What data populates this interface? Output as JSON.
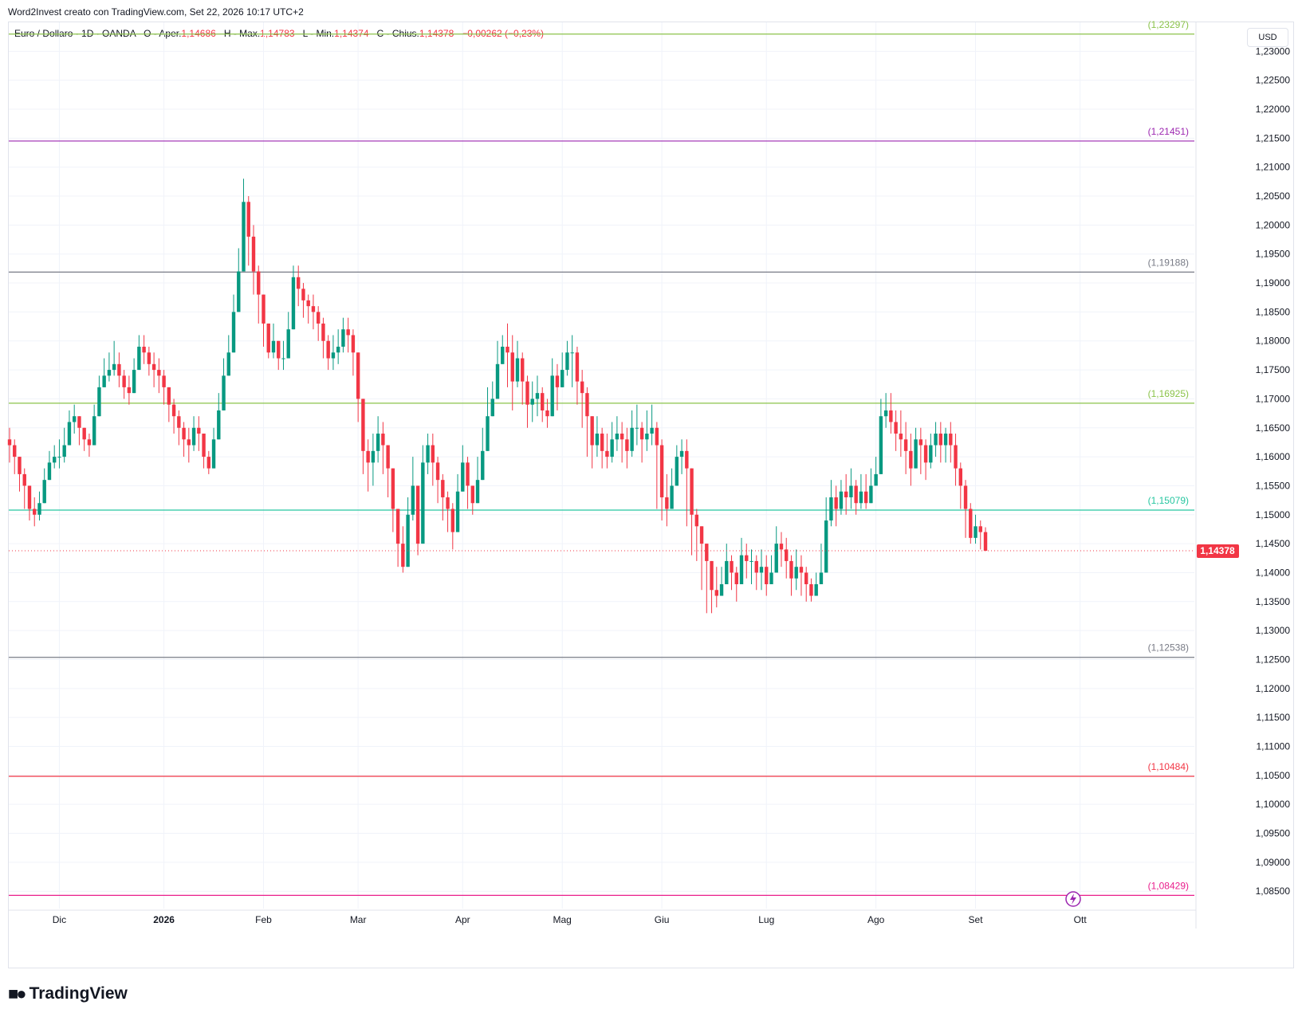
{
  "header": {
    "caption": "Word2Invest creato con TradingView.com, Set 22, 2026 10:17 UTC+2"
  },
  "legend": {
    "symbol": "Euro / Dollaro · 1D · OANDA",
    "o_label": "O - Aper.",
    "o_value": "1,14686",
    "h_label": "H - Max.",
    "h_value": "1,14783",
    "l_label": "L - Min.",
    "l_value": "1,14374",
    "c_label": "C - Chius.",
    "c_value": "1,14378",
    "change": "−0,00262 (−0,23%)"
  },
  "currency": "USD",
  "logo": {
    "text": "TradingView"
  },
  "colors": {
    "up": "#089981",
    "down": "#f23645",
    "grid": "#f0f3fa",
    "axis_text": "#131722"
  },
  "chart_data": {
    "type": "candlestick",
    "ylim": [
      1.082,
      1.235
    ],
    "y_ticks": [
      {
        "v": 1.23,
        "label": "1,23000"
      },
      {
        "v": 1.225,
        "label": "1,22500"
      },
      {
        "v": 1.22,
        "label": "1,22000"
      },
      {
        "v": 1.215,
        "label": "1,21500"
      },
      {
        "v": 1.21,
        "label": "1,21000"
      },
      {
        "v": 1.205,
        "label": "1,20500"
      },
      {
        "v": 1.2,
        "label": "1,20000"
      },
      {
        "v": 1.195,
        "label": "1,19500"
      },
      {
        "v": 1.19,
        "label": "1,19000"
      },
      {
        "v": 1.185,
        "label": "1,18500"
      },
      {
        "v": 1.18,
        "label": "1,18000"
      },
      {
        "v": 1.175,
        "label": "1,17500"
      },
      {
        "v": 1.17,
        "label": "1,17000"
      },
      {
        "v": 1.165,
        "label": "1,16500"
      },
      {
        "v": 1.16,
        "label": "1,16000"
      },
      {
        "v": 1.155,
        "label": "1,15500"
      },
      {
        "v": 1.15,
        "label": "1,15000"
      },
      {
        "v": 1.145,
        "label": "1,14500"
      },
      {
        "v": 1.14,
        "label": "1,14000"
      },
      {
        "v": 1.135,
        "label": "1,13500"
      },
      {
        "v": 1.13,
        "label": "1,13000"
      },
      {
        "v": 1.125,
        "label": "1,12500"
      },
      {
        "v": 1.12,
        "label": "1,12000"
      },
      {
        "v": 1.115,
        "label": "1,11500"
      },
      {
        "v": 1.11,
        "label": "1,11000"
      },
      {
        "v": 1.105,
        "label": "1,10500"
      },
      {
        "v": 1.1,
        "label": "1,10000"
      },
      {
        "v": 1.095,
        "label": "1,09500"
      },
      {
        "v": 1.09,
        "label": "1,09000"
      },
      {
        "v": 1.085,
        "label": "1,08500"
      }
    ],
    "x_ticks": [
      {
        "i": 10,
        "label": "Dic"
      },
      {
        "i": 31,
        "label": "2026"
      },
      {
        "i": 51,
        "label": "Feb"
      },
      {
        "i": 70,
        "label": "Mar"
      },
      {
        "i": 91,
        "label": "Apr"
      },
      {
        "i": 111,
        "label": "Mag"
      },
      {
        "i": 131,
        "label": "Giu"
      },
      {
        "i": 152,
        "label": "Lug"
      },
      {
        "i": 174,
        "label": "Ago"
      },
      {
        "i": 194,
        "label": "Set"
      },
      {
        "i": 215,
        "label": "Ott"
      }
    ],
    "last_price": {
      "v": 1.14378,
      "label": "1,14378"
    },
    "levels": [
      {
        "v": 1.23297,
        "label": "(1,23297)",
        "color": "#8bc34a"
      },
      {
        "v": 1.21451,
        "label": "(1,21451)",
        "color": "#9c27b0"
      },
      {
        "v": 1.19188,
        "label": "(1,19188)",
        "color": "#787b86"
      },
      {
        "v": 1.16925,
        "label": "(1,16925)",
        "color": "#8bc34a"
      },
      {
        "v": 1.15079,
        "label": "(1,15079)",
        "color": "#26c6a0"
      },
      {
        "v": 1.12538,
        "label": "(1,12538)",
        "color": "#787b86"
      },
      {
        "v": 1.10484,
        "label": "(1,10484)",
        "color": "#f23645"
      },
      {
        "v": 1.08429,
        "label": "(1,08429)",
        "color": "#e91e8c"
      }
    ],
    "closes": [
      1.162,
      1.16,
      1.157,
      1.155,
      1.151,
      1.15,
      1.152,
      1.156,
      1.159,
      1.16,
      1.16,
      1.162,
      1.166,
      1.167,
      1.165,
      1.163,
      1.162,
      1.167,
      1.172,
      1.174,
      1.175,
      1.176,
      1.174,
      1.172,
      1.171,
      1.175,
      1.179,
      1.178,
      1.176,
      1.175,
      1.174,
      1.172,
      1.169,
      1.167,
      1.165,
      1.163,
      1.162,
      1.165,
      1.164,
      1.16,
      1.158,
      1.163,
      1.168,
      1.174,
      1.178,
      1.185,
      1.192,
      1.204,
      1.198,
      1.192,
      1.188,
      1.183,
      1.178,
      1.18,
      1.177,
      1.177,
      1.182,
      1.191,
      1.189,
      1.187,
      1.186,
      1.185,
      1.183,
      1.18,
      1.177,
      1.178,
      1.179,
      1.182,
      1.181,
      1.178,
      1.17,
      1.161,
      1.159,
      1.161,
      1.164,
      1.162,
      1.158,
      1.151,
      1.145,
      1.141,
      1.15,
      1.155,
      1.145,
      1.159,
      1.162,
      1.159,
      1.156,
      1.153,
      1.151,
      1.147,
      1.154,
      1.159,
      1.155,
      1.152,
      1.156,
      1.161,
      1.167,
      1.17,
      1.176,
      1.179,
      1.178,
      1.173,
      1.177,
      1.173,
      1.169,
      1.17,
      1.171,
      1.168,
      1.167,
      1.174,
      1.172,
      1.175,
      1.178,
      1.178,
      1.173,
      1.171,
      1.167,
      1.162,
      1.164,
      1.161,
      1.16,
      1.163,
      1.164,
      1.163,
      1.161,
      1.165,
      1.165,
      1.163,
      1.164,
      1.165,
      1.162,
      1.153,
      1.151,
      1.155,
      1.16,
      1.161,
      1.158,
      1.15,
      1.148,
      1.145,
      1.142,
      1.137,
      1.136,
      1.138,
      1.142,
      1.14,
      1.138,
      1.143,
      1.142,
      1.142,
      1.14,
      1.141,
      1.138,
      1.14,
      1.145,
      1.144,
      1.142,
      1.139,
      1.141,
      1.14,
      1.138,
      1.136,
      1.138,
      1.14,
      1.149,
      1.153,
      1.151,
      1.154,
      1.153,
      1.155,
      1.152,
      1.154,
      1.152,
      1.155,
      1.157,
      1.167,
      1.168,
      1.166,
      1.164,
      1.163,
      1.161,
      1.158,
      1.163,
      1.162,
      1.159,
      1.162,
      1.164,
      1.162,
      1.164,
      1.162,
      1.158,
      1.155,
      1.151,
      1.146,
      1.148,
      1.147,
      1.14378
    ],
    "highs": [
      1.165,
      1.163,
      1.16,
      1.158,
      1.155,
      1.153,
      1.154,
      1.158,
      1.161,
      1.162,
      1.163,
      1.165,
      1.168,
      1.169,
      1.167,
      1.165,
      1.164,
      1.169,
      1.174,
      1.177,
      1.178,
      1.18,
      1.178,
      1.175,
      1.174,
      1.177,
      1.181,
      1.181,
      1.179,
      1.178,
      1.177,
      1.175,
      1.172,
      1.17,
      1.168,
      1.166,
      1.165,
      1.167,
      1.167,
      1.163,
      1.161,
      1.165,
      1.171,
      1.177,
      1.181,
      1.188,
      1.196,
      1.208,
      1.205,
      1.2,
      1.193,
      1.187,
      1.183,
      1.183,
      1.18,
      1.18,
      1.185,
      1.193,
      1.193,
      1.19,
      1.188,
      1.188,
      1.186,
      1.184,
      1.181,
      1.181,
      1.182,
      1.184,
      1.184,
      1.182,
      1.176,
      1.168,
      1.163,
      1.164,
      1.167,
      1.166,
      1.162,
      1.158,
      1.151,
      1.148,
      1.153,
      1.16,
      1.155,
      1.162,
      1.164,
      1.164,
      1.16,
      1.157,
      1.154,
      1.152,
      1.157,
      1.162,
      1.16,
      1.155,
      1.16,
      1.165,
      1.172,
      1.173,
      1.18,
      1.181,
      1.183,
      1.181,
      1.18,
      1.178,
      1.174,
      1.173,
      1.174,
      1.172,
      1.17,
      1.177,
      1.176,
      1.178,
      1.18,
      1.181,
      1.179,
      1.175,
      1.172,
      1.167,
      1.167,
      1.165,
      1.164,
      1.166,
      1.167,
      1.166,
      1.165,
      1.168,
      1.169,
      1.166,
      1.168,
      1.169,
      1.166,
      1.163,
      1.157,
      1.158,
      1.162,
      1.163,
      1.163,
      1.155,
      1.151,
      1.148,
      1.145,
      1.141,
      1.141,
      1.141,
      1.145,
      1.143,
      1.141,
      1.146,
      1.145,
      1.144,
      1.143,
      1.144,
      1.143,
      1.143,
      1.148,
      1.147,
      1.146,
      1.143,
      1.144,
      1.143,
      1.141,
      1.139,
      1.14,
      1.145,
      1.153,
      1.156,
      1.155,
      1.156,
      1.157,
      1.158,
      1.156,
      1.157,
      1.157,
      1.158,
      1.16,
      1.17,
      1.171,
      1.171,
      1.168,
      1.168,
      1.166,
      1.164,
      1.165,
      1.165,
      1.163,
      1.164,
      1.166,
      1.166,
      1.165,
      1.166,
      1.164,
      1.159,
      1.156,
      1.152,
      1.15,
      1.149,
      1.14783
    ],
    "lows": [
      1.159,
      1.157,
      1.154,
      1.151,
      1.149,
      1.148,
      1.149,
      1.153,
      1.157,
      1.158,
      1.158,
      1.159,
      1.162,
      1.164,
      1.162,
      1.161,
      1.16,
      1.164,
      1.169,
      1.172,
      1.173,
      1.174,
      1.172,
      1.17,
      1.169,
      1.172,
      1.176,
      1.176,
      1.174,
      1.172,
      1.171,
      1.169,
      1.166,
      1.164,
      1.162,
      1.16,
      1.159,
      1.161,
      1.161,
      1.158,
      1.157,
      1.16,
      1.165,
      1.171,
      1.175,
      1.182,
      1.189,
      1.198,
      1.193,
      1.188,
      1.183,
      1.179,
      1.177,
      1.177,
      1.175,
      1.175,
      1.179,
      1.187,
      1.186,
      1.184,
      1.183,
      1.182,
      1.18,
      1.177,
      1.175,
      1.175,
      1.176,
      1.178,
      1.178,
      1.174,
      1.166,
      1.157,
      1.154,
      1.155,
      1.159,
      1.157,
      1.153,
      1.147,
      1.141,
      1.14,
      1.143,
      1.149,
      1.143,
      1.152,
      1.157,
      1.155,
      1.152,
      1.149,
      1.147,
      1.144,
      1.149,
      1.154,
      1.151,
      1.15,
      1.153,
      1.157,
      1.163,
      1.167,
      1.173,
      1.176,
      1.172,
      1.168,
      1.172,
      1.169,
      1.165,
      1.166,
      1.167,
      1.166,
      1.165,
      1.169,
      1.168,
      1.172,
      1.174,
      1.172,
      1.169,
      1.165,
      1.16,
      1.158,
      1.16,
      1.158,
      1.158,
      1.159,
      1.161,
      1.159,
      1.158,
      1.16,
      1.162,
      1.159,
      1.161,
      1.162,
      1.151,
      1.149,
      1.148,
      1.151,
      1.156,
      1.157,
      1.148,
      1.143,
      1.142,
      1.137,
      1.133,
      1.133,
      1.134,
      1.136,
      1.138,
      1.137,
      1.135,
      1.139,
      1.139,
      1.138,
      1.137,
      1.137,
      1.136,
      1.138,
      1.142,
      1.141,
      1.139,
      1.136,
      1.137,
      1.136,
      1.135,
      1.135,
      1.136,
      1.138,
      1.145,
      1.148,
      1.148,
      1.15,
      1.15,
      1.151,
      1.15,
      1.151,
      1.151,
      1.152,
      1.155,
      1.164,
      1.165,
      1.164,
      1.161,
      1.16,
      1.157,
      1.155,
      1.158,
      1.157,
      1.156,
      1.158,
      1.16,
      1.159,
      1.159,
      1.159,
      1.155,
      1.151,
      1.146,
      1.145,
      1.145,
      1.144,
      1.14374
    ]
  }
}
